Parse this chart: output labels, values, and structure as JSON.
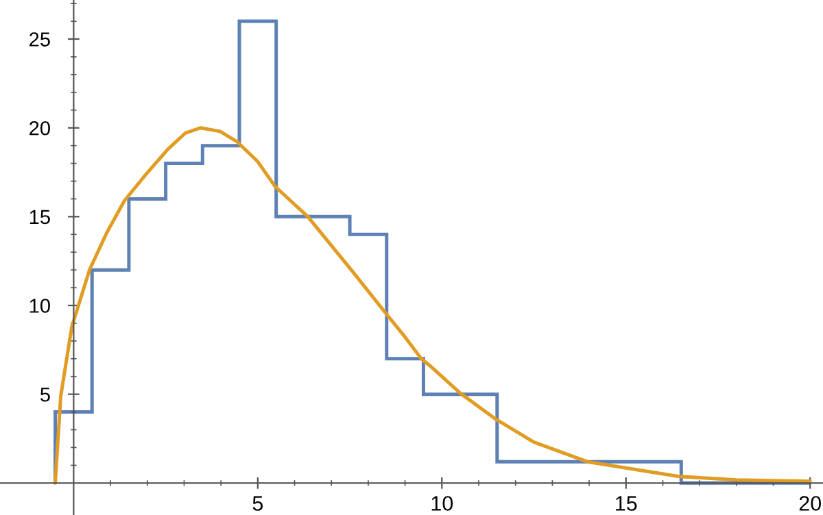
{
  "chart_data": {
    "type": "histogram",
    "series": [
      {
        "color": "#5e81b5",
        "bins": [
          -0.5,
          0.5,
          1.5,
          2.5,
          3.5,
          4.5,
          5.5,
          7.5,
          8.5,
          9.5,
          11.5,
          16.5,
          20
        ],
        "values": [
          4,
          12,
          16,
          18,
          19,
          26,
          15,
          14,
          7,
          5,
          1.2,
          0
        ]
      },
      {
        "type": "line",
        "color": "#e19c24",
        "x": [
          -0.5,
          -0.35,
          -0.05,
          0.43,
          0.9,
          1.38,
          1.97,
          2.56,
          3.03,
          3.45,
          3.98,
          4.45,
          5.0,
          5.47,
          6.36,
          7.54,
          8.5,
          8.97,
          9.44,
          9.68,
          10.5,
          11.46,
          12.5,
          13.95,
          16.44,
          18,
          20
        ],
        "values": [
          0,
          4.9,
          8.8,
          12.0,
          14.1,
          15.9,
          17.4,
          18.8,
          19.7,
          20.0,
          19.8,
          19.2,
          18.1,
          16.7,
          15.0,
          12.0,
          9.5,
          8.3,
          7.0,
          6.6,
          5.06,
          3.6,
          2.3,
          1.2,
          0.37,
          0.18,
          0.1
        ]
      }
    ],
    "xlim": [
      -2,
      20.35
    ],
    "ylim": [
      -1.8,
      27.2
    ],
    "xticks": [
      {
        "value": 1,
        "label": null
      },
      {
        "value": 2,
        "label": null
      },
      {
        "value": 3,
        "label": null
      },
      {
        "value": 4,
        "label": null
      },
      5,
      {
        "value": 6,
        "label": null
      },
      {
        "value": 7,
        "label": null
      },
      {
        "value": 8,
        "label": null
      },
      {
        "value": 9,
        "label": null
      },
      10,
      {
        "value": 11,
        "label": null
      },
      {
        "value": 12,
        "label": null
      },
      {
        "value": 13,
        "label": null
      },
      {
        "value": 14,
        "label": null
      },
      15,
      {
        "value": 16,
        "label": null
      },
      {
        "value": 17,
        "label": null
      },
      {
        "value": 18,
        "label": null
      },
      {
        "value": 19,
        "label": null
      },
      20
    ],
    "yticks": [
      {
        "value": 1,
        "label": null
      },
      {
        "value": 2,
        "label": null
      },
      {
        "value": 3,
        "label": null
      },
      {
        "value": 4,
        "label": null
      },
      5,
      {
        "value": 6,
        "label": null
      },
      {
        "value": 7,
        "label": null
      },
      {
        "value": 8,
        "label": null
      },
      {
        "value": 9,
        "label": null
      },
      10,
      {
        "value": 11,
        "label": null
      },
      {
        "value": 12,
        "label": null
      },
      {
        "value": 13,
        "label": null
      },
      {
        "value": 14,
        "label": null
      },
      15,
      {
        "value": 16,
        "label": null
      },
      {
        "value": 17,
        "label": null
      },
      {
        "value": 18,
        "label": null
      },
      {
        "value": 19,
        "label": null
      },
      20,
      {
        "value": 21,
        "label": null
      },
      {
        "value": 22,
        "label": null
      },
      {
        "value": 23,
        "label": null
      },
      {
        "value": 24,
        "label": null
      },
      25,
      {
        "value": 26,
        "label": null
      },
      {
        "value": 27,
        "label": null
      }
    ]
  }
}
